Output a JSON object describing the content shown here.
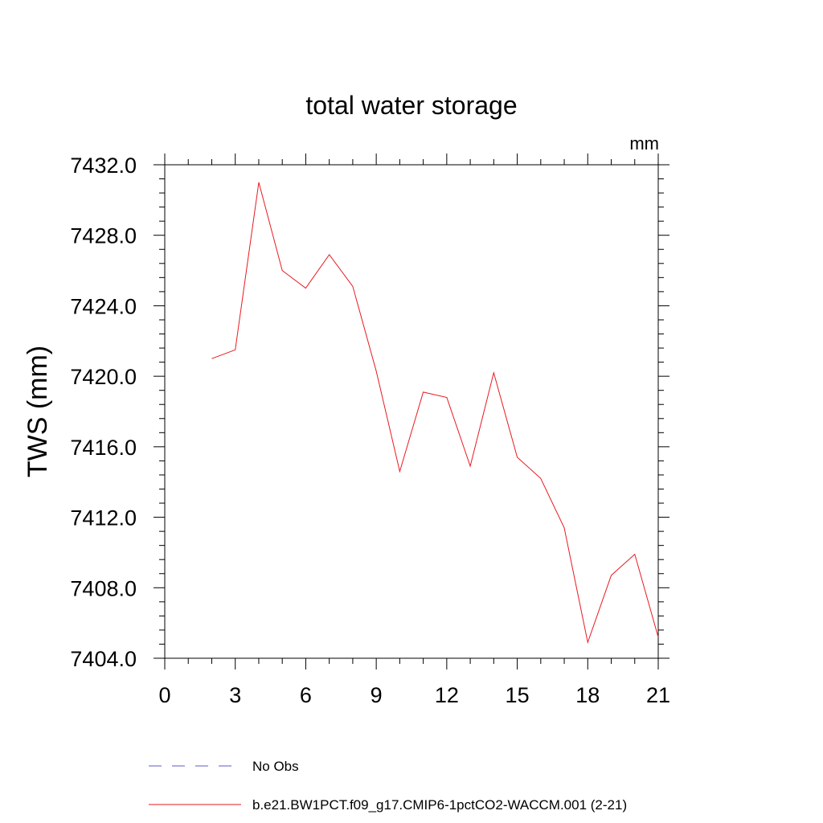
{
  "chart_data": {
    "type": "line",
    "title": "total water storage",
    "units_label": "mm",
    "xlabel": "",
    "ylabel": "TWS  (mm)",
    "xlim": [
      0,
      21
    ],
    "ylim": [
      7404.0,
      7432.0
    ],
    "x_ticks": [
      0,
      3,
      6,
      9,
      12,
      15,
      18,
      21
    ],
    "x_tick_labels": [
      "0",
      "3",
      "6",
      "9",
      "12",
      "15",
      "18",
      "21"
    ],
    "y_ticks": [
      7404.0,
      7408.0,
      7412.0,
      7416.0,
      7420.0,
      7424.0,
      7428.0,
      7432.0
    ],
    "y_tick_labels": [
      "7404.0",
      "7408.0",
      "7412.0",
      "7416.0",
      "7420.0",
      "7424.0",
      "7428.0",
      "7432.0"
    ],
    "grid": false,
    "legend_position": "bottom",
    "series": [
      {
        "name": "b.e21.BW1PCT.f09_g17.CMIP6-1pctCO2-WACCM.001 (2-21)",
        "color": "#e8191f",
        "x": [
          2,
          3,
          4,
          5,
          6,
          7,
          8,
          9,
          10,
          11,
          12,
          13,
          14,
          15,
          16,
          17,
          18,
          19,
          20,
          21
        ],
        "y": [
          7421.0,
          7421.5,
          7431.0,
          7426.0,
          7425.0,
          7426.9,
          7425.1,
          7420.3,
          7414.6,
          7419.1,
          7418.8,
          7414.9,
          7420.2,
          7415.4,
          7414.2,
          7411.4,
          7404.9,
          7408.7,
          7409.9,
          7405.2
        ]
      }
    ],
    "legend": [
      {
        "label": "No Obs",
        "color": "#5b5bc8",
        "style": "dashed"
      },
      {
        "label": "b.e21.BW1PCT.f09_g17.CMIP6-1pctCO2-WACCM.001 (2-21)",
        "color": "#e8191f",
        "style": "solid"
      }
    ]
  }
}
